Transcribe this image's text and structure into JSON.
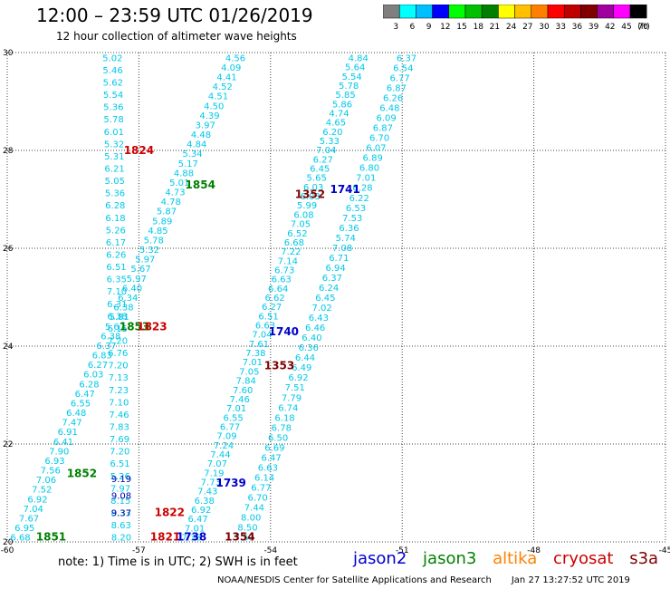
{
  "header": {
    "title": "12:00 – 23:59 UTC 01/26/2019",
    "subtitle": "12 hour collection of altimeter wave heights"
  },
  "colorbar": {
    "unit": "(ft)",
    "colors": [
      "#7f7f7f",
      "#00ffff",
      "#00bfff",
      "#0000ff",
      "#00ff00",
      "#00c000",
      "#008000",
      "#ffff00",
      "#ffc000",
      "#ff8000",
      "#ff0000",
      "#c00000",
      "#800000",
      "#a000a0",
      "#ff00ff",
      "#000000"
    ],
    "labels": [
      "3",
      "6",
      "9",
      "12",
      "15",
      "18",
      "21",
      "24",
      "27",
      "30",
      "33",
      "36",
      "39",
      "42",
      "45",
      "70"
    ]
  },
  "note": "note:  1) Time is in UTC;  2) SWH is in feet",
  "satellites": [
    {
      "name": "jason2",
      "color": "#0000cc"
    },
    {
      "name": "jason3",
      "color": "#008000"
    },
    {
      "name": "altika",
      "color": "#ff8000"
    },
    {
      "name": "cryosat",
      "color": "#cc0000"
    },
    {
      "name": "s3a",
      "color": "#800000"
    }
  ],
  "footer": {
    "source": "NOAA/NESDIS Center for Satellite Applications and Research",
    "timestamp": "Jan 27 13:27:52 UTC 2019"
  },
  "chart_data": {
    "type": "scatter",
    "xlim": [
      -60,
      -45
    ],
    "ylim": [
      20,
      30
    ],
    "x_ticks": [
      "-60",
      "-57",
      "-54",
      "-51",
      "-48",
      "-45"
    ],
    "y_ticks": [
      "20",
      "22",
      "24",
      "26",
      "28",
      "30"
    ],
    "grid": true,
    "time_labels": [
      {
        "text": "1824",
        "x": -57.0,
        "y": 28.0,
        "color": "#cc0000"
      },
      {
        "text": "1854",
        "x": -55.6,
        "y": 27.3,
        "color": "#008000"
      },
      {
        "text": "1741",
        "x": -52.3,
        "y": 27.2,
        "color": "#0000cc"
      },
      {
        "text": "1352",
        "x": -53.1,
        "y": 27.1,
        "color": "#800000"
      },
      {
        "text": "1853",
        "x": -57.1,
        "y": 24.4,
        "color": "#008000"
      },
      {
        "text": "1823",
        "x": -56.7,
        "y": 24.4,
        "color": "#cc0000"
      },
      {
        "text": "1740",
        "x": -53.7,
        "y": 24.3,
        "color": "#0000cc"
      },
      {
        "text": "1353",
        "x": -53.8,
        "y": 23.6,
        "color": "#800000"
      },
      {
        "text": "1852",
        "x": -58.3,
        "y": 21.4,
        "color": "#008000"
      },
      {
        "text": "1739",
        "x": -54.9,
        "y": 21.2,
        "color": "#0000cc"
      },
      {
        "text": "1822",
        "x": -56.3,
        "y": 20.6,
        "color": "#cc0000"
      },
      {
        "text": "1851",
        "x": -59.0,
        "y": 20.1,
        "color": "#008000"
      },
      {
        "text": "1821",
        "x": -56.4,
        "y": 20.1,
        "color": "#cc0000"
      },
      {
        "text": "1738",
        "x": -55.8,
        "y": 20.1,
        "color": "#0000cc"
      },
      {
        "text": "1354",
        "x": -54.7,
        "y": 20.1,
        "color": "#800000"
      }
    ],
    "tracks": [
      {
        "name": "track-a",
        "color": "#00c8e8",
        "x0": -57.6,
        "y0": 29.9,
        "x1": -57.4,
        "y1": 20.1,
        "values": [
          "5.02",
          "5.46",
          "5.62",
          "5.54",
          "5.36",
          "5.78",
          "6.01",
          "5.32",
          "5.31",
          "6.21",
          "5.05",
          "5.36",
          "6.28",
          "6.18",
          "5.26",
          "6.17",
          "6.26",
          "6.51",
          "6.35",
          "7.10",
          "6.31",
          "6.38",
          "6.15",
          "7.20",
          "6.76",
          "7.20",
          "7.13",
          "7.23",
          "7.10",
          "7.46",
          "7.83",
          "7.69",
          "7.20",
          "6.51",
          "5.26",
          "7.97",
          "8.15",
          "8.33",
          "8.63",
          "8.20"
        ]
      },
      {
        "name": "track-a-dark",
        "color": "#0000aa",
        "x0": -57.4,
        "y0": 21.3,
        "x1": -57.4,
        "y1": 20.6,
        "values": [
          "9.19",
          "9.08",
          "9.37"
        ]
      },
      {
        "name": "track-b",
        "color": "#00c8e8",
        "x0": -54.8,
        "y0": 29.9,
        "x1": -59.7,
        "y1": 20.1,
        "values": [
          "4.56",
          "4.09",
          "4.41",
          "4.52",
          "4.51",
          "4.50",
          "4.39",
          "3.97",
          "4.48",
          "4.84",
          "5.34",
          "5.17",
          "4.88",
          "5.01",
          "4.73",
          "4.78",
          "5.87",
          "5.89",
          "4.85",
          "5.78",
          "5.32",
          "5.97",
          "5.67",
          "5.97",
          "6.40",
          "6.34",
          "6.38",
          "5.81",
          "5.67",
          "6.38",
          "6.37",
          "6.83",
          "6.27",
          "6.03",
          "6.28",
          "6.47",
          "6.55",
          "6.48",
          "7.47",
          "6.91",
          "6.41",
          "7.90",
          "6.93",
          "7.56",
          "7.06",
          "7.52",
          "6.92",
          "7.04",
          "7.67",
          "6.95",
          "6.68"
        ]
      },
      {
        "name": "track-c",
        "color": "#00c8e8",
        "x0": -52.0,
        "y0": 29.9,
        "x1": -55.8,
        "y1": 20.1,
        "values": [
          "4.84",
          "5.64",
          "5.54",
          "5.78",
          "5.85",
          "5.86",
          "4.74",
          "4.65",
          "6.20",
          "5.33",
          "7.04",
          "6.27",
          "6.45",
          "5.65",
          "6.03",
          "6.03",
          "5.99",
          "6.08",
          "7.05",
          "6.52",
          "6.68",
          "7.22",
          "7.14",
          "6.73",
          "6.63",
          "6.64",
          "6.62",
          "6.27",
          "6.51",
          "6.63",
          "7.04",
          "7.61",
          "7.38",
          "7.01",
          "7.05",
          "7.84",
          "7.60",
          "7.46",
          "7.01",
          "6.55",
          "6.77",
          "7.09",
          "7.24",
          "7.44",
          "7.07",
          "7.19",
          "7.73",
          "7.43",
          "6.38",
          "6.92",
          "6.47",
          "7.01",
          "7.38"
        ]
      },
      {
        "name": "track-d",
        "color": "#00c8e8",
        "x0": -50.9,
        "y0": 29.9,
        "x1": -54.6,
        "y1": 20.1,
        "values": [
          "6.37",
          "6.54",
          "6.77",
          "6.87",
          "6.26",
          "6.48",
          "6.09",
          "6.87",
          "6.70",
          "6.07",
          "6.89",
          "6.80",
          "7.01",
          "6.28",
          "6.22",
          "6.53",
          "7.53",
          "6.36",
          "5.74",
          "7.08",
          "6.71",
          "6.94",
          "6.37",
          "6.24",
          "6.45",
          "7.02",
          "6.43",
          "6.46",
          "6.40",
          "6.36",
          "6.44",
          "6.49",
          "6.92",
          "7.51",
          "7.79",
          "6.74",
          "6.18",
          "6.78",
          "6.50",
          "6.69",
          "6.47",
          "6.63",
          "6.14",
          "6.77",
          "6.70",
          "7.44",
          "8.00",
          "8.50",
          "7.50"
        ]
      }
    ]
  }
}
